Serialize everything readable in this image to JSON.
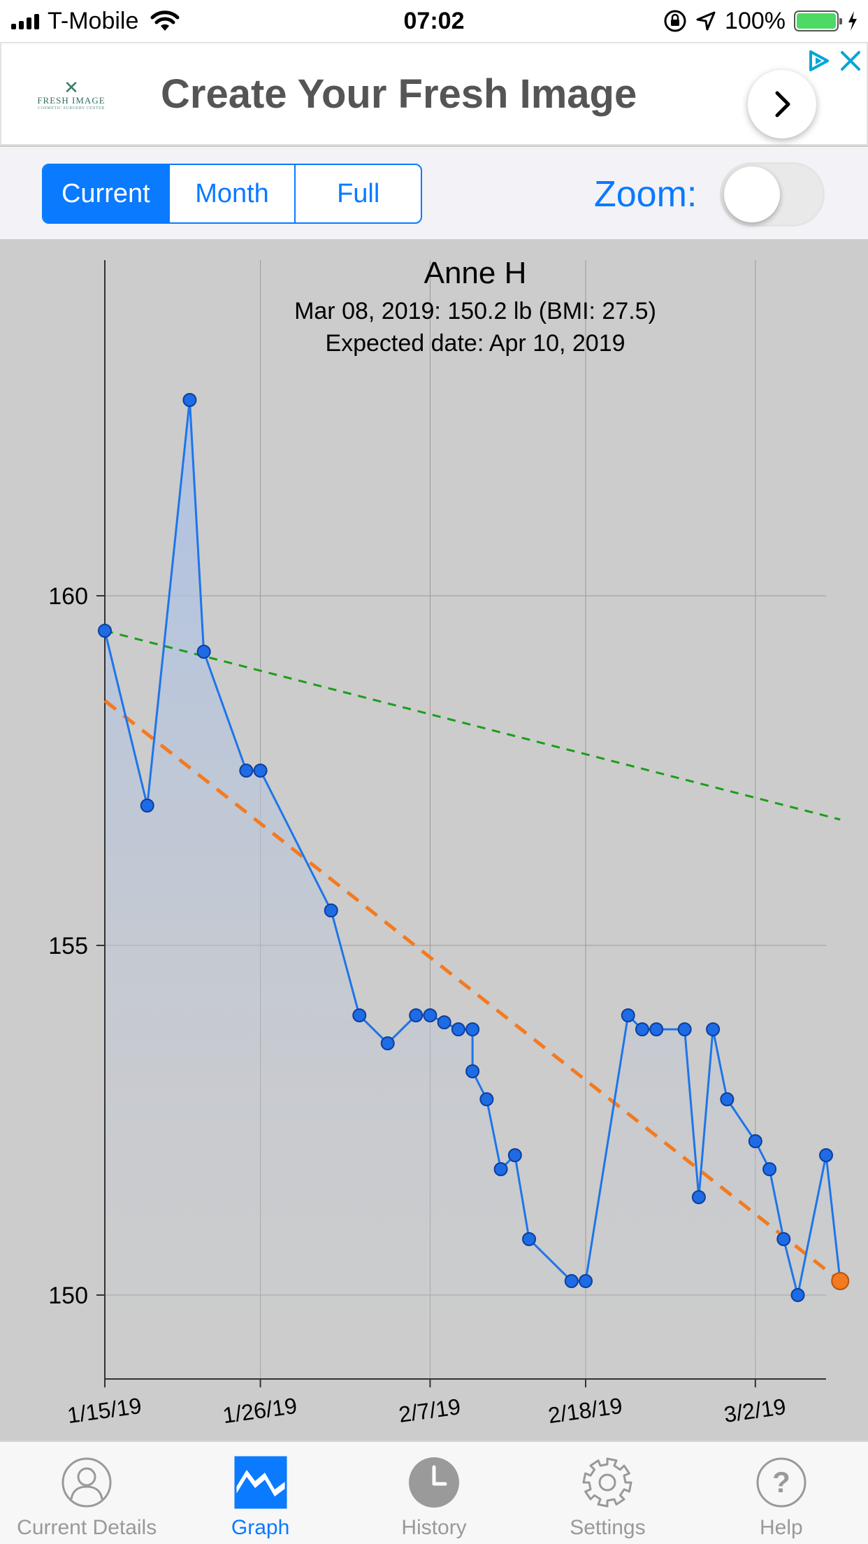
{
  "status_bar": {
    "carrier": "T-Mobile",
    "time": "07:02",
    "battery": "100%"
  },
  "ad": {
    "brand": "FRESH IMAGE",
    "brand_tagline": "COSMETIC SURGERY CENTER",
    "headline": "Create Your Fresh Image"
  },
  "segments": [
    {
      "label": "Current",
      "active": true
    },
    {
      "label": "Month",
      "active": false
    },
    {
      "label": "Full",
      "active": false
    }
  ],
  "zoom": {
    "label": "Zoom:",
    "on": false
  },
  "chart_data": {
    "type": "line",
    "title": "Anne H",
    "subtitle_1": "Mar 08, 2019: 150.2 lb (BMI: 27.5)",
    "subtitle_2": "Expected date: Apr 10, 2019",
    "x_ticks": [
      "1/15/19",
      "1/26/19",
      "2/7/19",
      "2/18/19",
      "3/2/19"
    ],
    "y_ticks": [
      150,
      155,
      160
    ],
    "xlim_days": [
      0,
      51
    ],
    "ylim": [
      148.8,
      164.8
    ],
    "grid": true,
    "colors": {
      "line": "#1e75ea",
      "point": "#1e6be6",
      "last_point": "#f47a20",
      "green_trend": "#1a9e1a",
      "orange_trend": "#f47a20"
    },
    "series": [
      {
        "x": [
          "1/15/19",
          "1/18/19",
          "1/21/19",
          "1/22/19",
          "1/25/19",
          "1/26/19",
          "1/31/19",
          "2/2/19",
          "2/4/19",
          "2/6/19",
          "2/7/19",
          "2/8/19",
          "2/9/19",
          "2/10/19",
          "2/10/19",
          "2/11/19",
          "2/12/19",
          "2/13/19",
          "2/14/19",
          "2/17/19",
          "2/18/19",
          "2/21/19",
          "2/22/19",
          "2/23/19",
          "2/25/19",
          "2/26/19",
          "2/27/19",
          "2/28/19",
          "3/2/19",
          "3/3/19",
          "3/4/19",
          "3/5/19",
          "3/7/19",
          "3/8/19"
        ],
        "y": [
          159.5,
          157.0,
          162.8,
          159.2,
          157.5,
          157.5,
          155.5,
          154.0,
          153.6,
          154.0,
          154.0,
          153.9,
          153.8,
          153.8,
          153.2,
          152.8,
          151.8,
          152.0,
          150.8,
          150.2,
          150.2,
          154.0,
          153.8,
          153.8,
          153.8,
          151.4,
          153.8,
          152.8,
          152.2,
          151.8,
          150.8,
          150.0,
          152.0,
          150.2
        ]
      }
    ],
    "trend_lines": [
      {
        "color": "green",
        "style": "dashed",
        "from": [
          "1/15/19",
          159.5
        ],
        "to": [
          "3/8/19",
          156.8
        ]
      },
      {
        "color": "orange",
        "style": "dashed",
        "from": [
          "1/15/19",
          158.5
        ],
        "to": [
          "3/8/19",
          150.2
        ]
      }
    ]
  },
  "tabs": [
    {
      "label": "Current Details",
      "icon": "person-icon",
      "active": false
    },
    {
      "label": "Graph",
      "icon": "graph-icon",
      "active": true
    },
    {
      "label": "History",
      "icon": "clock-icon",
      "active": false
    },
    {
      "label": "Settings",
      "icon": "gear-icon",
      "active": false
    },
    {
      "label": "Help",
      "icon": "help-icon",
      "active": false
    }
  ]
}
